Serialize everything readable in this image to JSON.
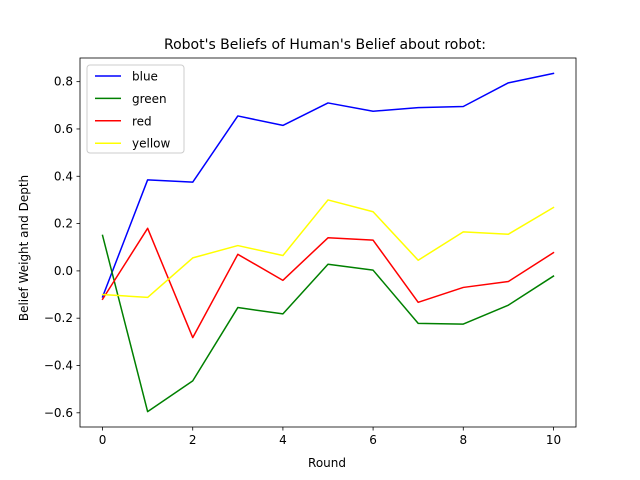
{
  "chart_data": {
    "type": "line",
    "title": "Robot's Beliefs of Human's Belief about robot:",
    "xlabel": "Round",
    "ylabel": "Belief Weight and Depth",
    "x": [
      0,
      1,
      2,
      3,
      4,
      5,
      6,
      7,
      8,
      9,
      10
    ],
    "xlim": [
      -0.5,
      10.5
    ],
    "ylim": [
      -0.66,
      0.9
    ],
    "xticks": [
      0,
      2,
      4,
      6,
      8,
      10
    ],
    "yticks": [
      -0.6,
      -0.4,
      -0.2,
      0.0,
      0.2,
      0.4,
      0.6,
      0.8
    ],
    "ytick_labels": [
      "−0.6",
      "−0.4",
      "−0.2",
      "0.0",
      "0.2",
      "0.4",
      "0.6",
      "0.8"
    ],
    "grid": false,
    "legend_position": "top-left",
    "series": [
      {
        "name": "blue",
        "color": "#0000ff",
        "values": [
          -0.11,
          0.385,
          0.375,
          0.655,
          0.615,
          0.71,
          0.675,
          0.69,
          0.695,
          0.795,
          0.835
        ]
      },
      {
        "name": "green",
        "color": "#008000",
        "values": [
          0.15,
          -0.595,
          -0.465,
          -0.155,
          -0.182,
          0.028,
          0.003,
          -0.222,
          -0.225,
          -0.145,
          -0.022
        ]
      },
      {
        "name": "red",
        "color": "#ff0000",
        "values": [
          -0.12,
          0.18,
          -0.282,
          0.07,
          -0.04,
          0.14,
          0.13,
          -0.133,
          -0.07,
          -0.045,
          0.077
        ]
      },
      {
        "name": "yellow",
        "color": "#ffff00",
        "values": [
          -0.1,
          -0.112,
          0.055,
          0.107,
          0.065,
          0.3,
          0.25,
          0.045,
          0.165,
          0.155,
          0.268
        ]
      }
    ]
  }
}
